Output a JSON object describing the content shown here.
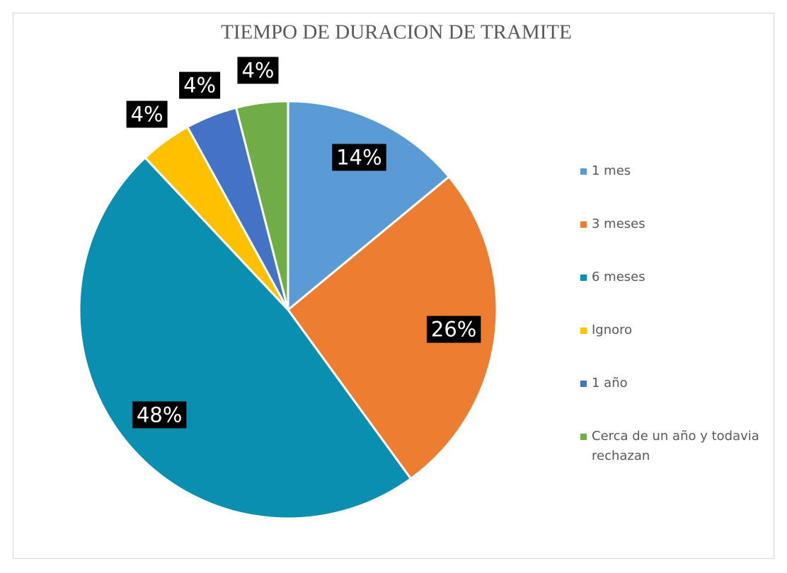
{
  "chart_data": {
    "type": "pie",
    "title": "TIEMPO DE DURACION DE TRAMITE",
    "categories": [
      "1 mes",
      "3 meses",
      "6 meses",
      "Ignoro",
      "1 año",
      "Cerca de un año y todavia rechazan"
    ],
    "values": [
      14,
      26,
      48,
      4,
      4,
      4
    ],
    "value_labels": [
      "14%",
      "26%",
      "48%",
      "4%",
      "4%",
      "4%"
    ],
    "colors": [
      "#5b9bd5",
      "#ed7d31",
      "#0b8fb0",
      "#ffc000",
      "#4472c4",
      "#70ad47"
    ],
    "legend": "right"
  }
}
